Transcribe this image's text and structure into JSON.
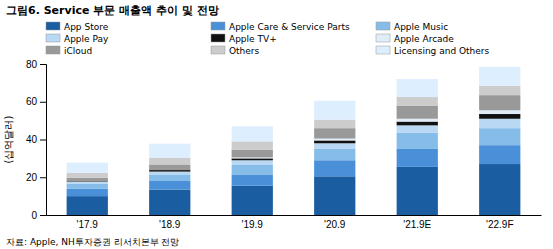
{
  "chart_data": {
    "type": "bar",
    "stacked": true,
    "title": "그림6. Service 부문 매출액 추이 및 전망",
    "ylabel": "(십억달러)",
    "annotations": [
      "자료: Apple, NH투자증권 리서치본부 전망"
    ],
    "categories": [
      "'17.9",
      "'18.9",
      "'19.9",
      "'20.9",
      "'21.9E",
      "'22.9F"
    ],
    "ylim": [
      0,
      80
    ],
    "yticks": [
      0,
      20,
      40,
      60,
      80
    ],
    "grid": false,
    "series": [
      {
        "name": "App Store",
        "color": "#1a5da0",
        "values": [
          10.0,
          13.5,
          15.5,
          20.5,
          25.5,
          27.0
        ]
      },
      {
        "name": "Apple Care & Service Parts",
        "color": "#4a90d9",
        "values": [
          4.0,
          4.5,
          6.0,
          8.5,
          9.5,
          10.0
        ]
      },
      {
        "name": "Apple Music",
        "color": "#85bce8",
        "values": [
          2.5,
          3.5,
          5.0,
          6.0,
          8.5,
          9.0
        ]
      },
      {
        "name": "Apple Pay",
        "color": "#b8d8f4",
        "values": [
          1.0,
          1.5,
          2.5,
          3.0,
          4.0,
          5.0
        ]
      },
      {
        "name": "Apple TV+",
        "color": "#111111",
        "values": [
          0.3,
          0.8,
          1.0,
          1.5,
          2.0,
          2.5
        ]
      },
      {
        "name": "Apple Arcade",
        "color": "#e0ecf8",
        "values": [
          0.0,
          0.0,
          0.5,
          1.0,
          1.5,
          2.0
        ]
      },
      {
        "name": "iCloud",
        "color": "#999999",
        "values": [
          2.0,
          3.0,
          4.0,
          5.5,
          7.0,
          8.0
        ]
      },
      {
        "name": "Others",
        "color": "#cccccc",
        "values": [
          2.5,
          3.5,
          4.5,
          4.5,
          4.5,
          5.0
        ]
      },
      {
        "name": "Licensing and Others",
        "color": "#ddeeff",
        "values": [
          5.5,
          7.5,
          8.0,
          10.0,
          9.5,
          10.0
        ]
      }
    ]
  }
}
